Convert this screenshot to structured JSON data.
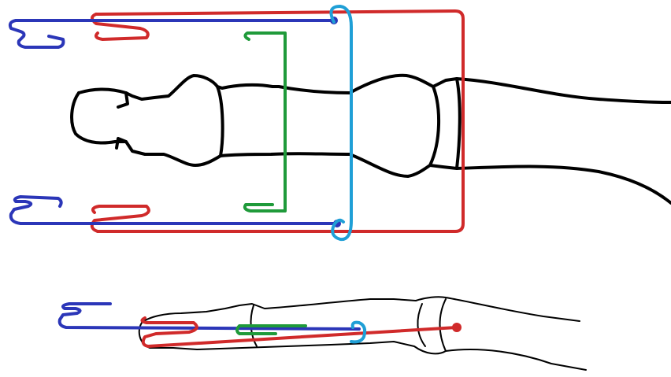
{
  "colors": {
    "background": "#ffffff",
    "bone_outline": "#000000",
    "blue_wire": "#2b36b8",
    "red_wire": "#d02a2a",
    "green_wire": "#1f9a3a",
    "cyan_wire": "#1f9fd6"
  },
  "diagram": {
    "top_view": {
      "components": [
        "bone-outline",
        "blue-wire",
        "red-wire",
        "green-wire",
        "cyan-wire"
      ]
    },
    "side_view": {
      "components": [
        "bone-outline",
        "blue-wire",
        "red-wire",
        "green-wire",
        "cyan-wire"
      ]
    }
  }
}
